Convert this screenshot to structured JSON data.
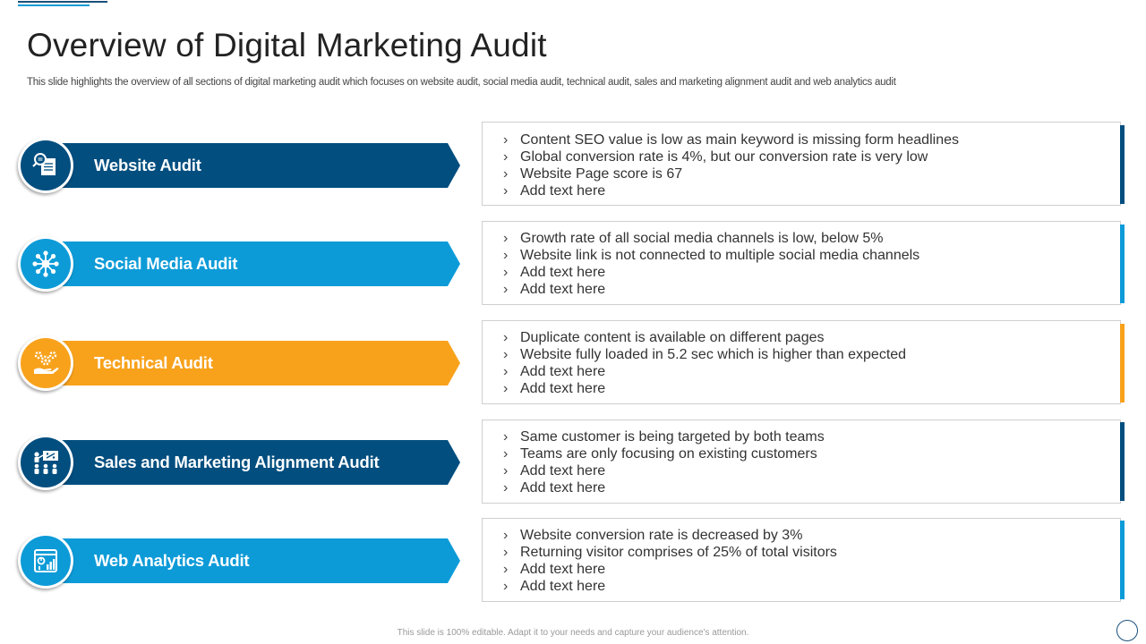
{
  "slide": {
    "title": "Overview of Digital Marketing Audit",
    "subtitle": "This slide highlights the overview of all sections of digital marketing audit which focuses on website audit, social media audit, technical audit, sales and marketing alignment audit and web analytics audit",
    "footer": "This slide is 100% editable. Adapt it to your needs and capture your audience's attention."
  },
  "colors": {
    "dark_blue": "#014e7f",
    "light_blue": "#0d9bd8",
    "orange": "#f8a21c"
  },
  "sections": [
    {
      "label": "Website Audit",
      "icon": "website-audit-icon",
      "color": "#014e7f",
      "bullets": [
        "Content SEO value is low as main keyword is missing form headlines",
        "Global conversion  rate is 4%, but our conversion rate is very low",
        "Website Page score is 67",
        "Add text here"
      ]
    },
    {
      "label": "Social Media Audit",
      "icon": "network-icon",
      "color": "#0d9bd8",
      "bullets": [
        "Growth rate of all social media channels is low, below 5%",
        "Website link is not connected to multiple social media channels",
        "Add text here",
        "Add text here"
      ]
    },
    {
      "label": "Technical Audit",
      "icon": "gears-hand-icon",
      "color": "#f8a21c",
      "bullets": [
        "Duplicate content is available on different pages",
        "Website fully  loaded in 5.2 sec which is higher than expected",
        "Add text here",
        "Add text here"
      ]
    },
    {
      "label": "Sales and Marketing Alignment Audit",
      "icon": "team-presentation-icon",
      "color": "#014e7f",
      "bullets": [
        "Same customer is being targeted by both teams",
        "Teams are only focusing on existing customers",
        "Add text here",
        "Add text here"
      ]
    },
    {
      "label": "Web Analytics Audit",
      "icon": "analytics-window-icon",
      "color": "#0d9bd8",
      "bullets": [
        "Website conversion  rate is decreased by 3%",
        "Returning  visitor comprises of 25% of total visitors",
        "Add text here",
        "Add text here"
      ]
    }
  ]
}
